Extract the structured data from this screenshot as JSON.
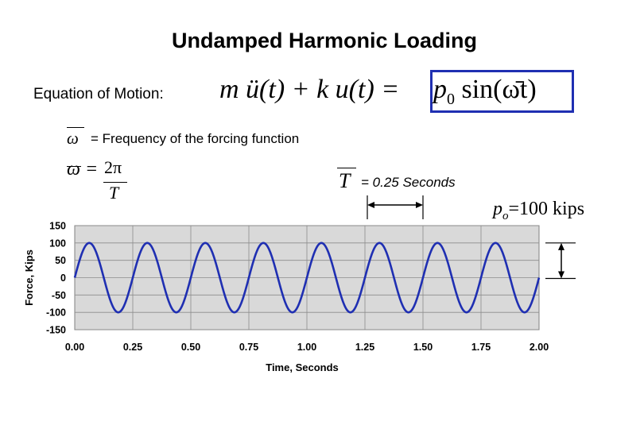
{
  "slide": {
    "title": "Undamped Harmonic Loading",
    "eom_label": "Equation of Motion:",
    "equation_lhs": "m ü(t) + k u(t) =",
    "equation_rhs_p": "p",
    "equation_rhs_sub": "0",
    "equation_rhs_sin": " sin(ω̄t)",
    "omega_symbol": "ω",
    "omega_definition": "= Frequency of the forcing function",
    "omega_eq_lhs": "ω =",
    "frac_numerator": "2π",
    "frac_denominator": "T",
    "period_symbol": "T",
    "period_value": "= 0.25 Seconds",
    "amp_p": "p",
    "amp_sub": "o",
    "amp_rest": "=100 kips",
    "accent_color": "#1f2fb2",
    "plot_background": "#d9d9d9",
    "line_color": "#1f2fb2"
  },
  "chart_data": {
    "type": "line",
    "title": "",
    "xlabel": "Time, Seconds",
    "ylabel": "Force, Kips",
    "xlim": [
      0,
      2.0
    ],
    "ylim": [
      -150,
      150
    ],
    "x_ticks": [
      "0.00",
      "0.25",
      "0.50",
      "0.75",
      "1.00",
      "1.25",
      "1.50",
      "1.75",
      "2.00"
    ],
    "y_ticks": [
      "150",
      "100",
      "50",
      "0",
      "-50",
      "-100",
      "-150"
    ],
    "grid": true,
    "series": [
      {
        "function": "100*sin(2*pi*t/0.25)",
        "amplitude": 100,
        "period": 0.25,
        "t_start": 0,
        "t_end": 2.0
      }
    ]
  }
}
